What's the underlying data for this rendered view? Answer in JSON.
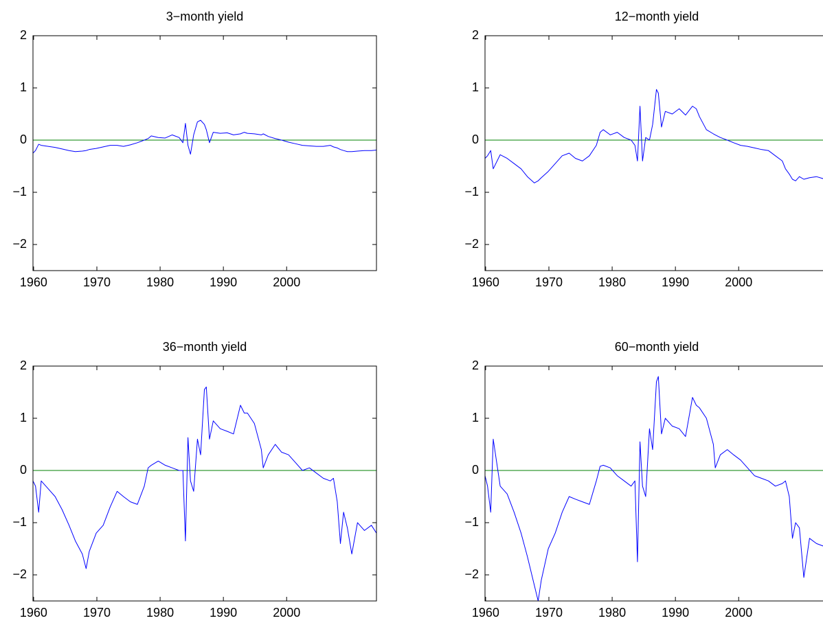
{
  "chart_data": [
    {
      "type": "line",
      "title": "3−month yield",
      "x": [
        1959.9,
        1960.3,
        1960.8,
        1961.2,
        1962.3,
        1963.4,
        1964.5,
        1965.6,
        1966.6,
        1967.7,
        1968.3,
        1968.8,
        1969.9,
        1971.0,
        1972.1,
        1973.2,
        1974.2,
        1975.3,
        1976.4,
        1977.5,
        1978.1,
        1978.6,
        1979.7,
        1980.8,
        1981.9,
        1983.0,
        1983.6,
        1984.0,
        1984.4,
        1984.8,
        1985.3,
        1985.9,
        1986.4,
        1987.0,
        1987.3,
        1987.8,
        1988.4,
        1989.5,
        1990.6,
        1991.6,
        1992.7,
        1993.3,
        1993.8,
        1994.9,
        1996.0,
        1996.3,
        1997.1,
        1998.2,
        1999.2,
        2000.3,
        2001.4,
        2002.5,
        2003.6,
        2004.7,
        2005.8,
        2006.9,
        2007.4,
        2008.0,
        2008.5,
        2009.0,
        2009.6,
        2010.3,
        2011.2,
        2012.3,
        2013.4,
        2014.2
      ],
      "series": [
        {
          "color": "#0000ff",
          "values": [
            -0.25,
            -0.2,
            -0.08,
            -0.1,
            -0.12,
            -0.14,
            -0.17,
            -0.2,
            -0.22,
            -0.21,
            -0.2,
            -0.18,
            -0.16,
            -0.13,
            -0.1,
            -0.1,
            -0.12,
            -0.09,
            -0.05,
            0.0,
            0.03,
            0.08,
            0.05,
            0.04,
            0.1,
            0.05,
            -0.05,
            0.32,
            -0.1,
            -0.27,
            0.1,
            0.35,
            0.38,
            0.3,
            0.2,
            -0.05,
            0.15,
            0.13,
            0.14,
            0.1,
            0.12,
            0.15,
            0.13,
            0.12,
            0.1,
            0.12,
            0.07,
            0.03,
            0.0,
            -0.04,
            -0.07,
            -0.1,
            -0.11,
            -0.12,
            -0.12,
            -0.1,
            -0.13,
            -0.15,
            -0.18,
            -0.2,
            -0.22,
            -0.22,
            -0.21,
            -0.2,
            -0.2,
            -0.19
          ]
        }
      ],
      "reference_line": {
        "y": 0,
        "color": "#008000"
      },
      "xlim": [
        1959.9,
        2014.2
      ],
      "xticks": [
        1960,
        1970,
        1980,
        1990,
        2000
      ],
      "ylim": [
        -2.5,
        2
      ],
      "yticks": [
        {
          "value": -2,
          "label": "−2"
        },
        {
          "value": -1,
          "label": "−1"
        },
        0,
        1,
        2
      ]
    },
    {
      "type": "line",
      "title": "12−month yield",
      "x": [
        1959.9,
        1960.3,
        1960.8,
        1961.2,
        1962.3,
        1963.4,
        1964.5,
        1965.6,
        1966.6,
        1967.7,
        1968.3,
        1968.8,
        1969.9,
        1971.0,
        1972.1,
        1973.2,
        1974.2,
        1975.3,
        1976.4,
        1977.5,
        1978.1,
        1978.6,
        1979.7,
        1980.8,
        1981.9,
        1983.0,
        1983.6,
        1984.0,
        1984.4,
        1984.8,
        1985.3,
        1985.9,
        1986.4,
        1987.0,
        1987.3,
        1987.8,
        1988.4,
        1989.5,
        1990.6,
        1991.6,
        1992.7,
        1993.3,
        1993.8,
        1994.9,
        1996.0,
        1996.3,
        1997.1,
        1998.2,
        1999.2,
        2000.3,
        2001.4,
        2002.5,
        2003.6,
        2004.7,
        2005.8,
        2006.9,
        2007.4,
        2008.0,
        2008.5,
        2009.0,
        2009.6,
        2010.3,
        2011.2,
        2012.3,
        2013.4,
        2014.2
      ],
      "series": [
        {
          "color": "#0000ff",
          "values": [
            -0.35,
            -0.3,
            -0.2,
            -0.55,
            -0.28,
            -0.35,
            -0.45,
            -0.55,
            -0.7,
            -0.82,
            -0.78,
            -0.72,
            -0.6,
            -0.45,
            -0.3,
            -0.25,
            -0.35,
            -0.4,
            -0.3,
            -0.1,
            0.15,
            0.2,
            0.1,
            0.15,
            0.05,
            0.0,
            -0.1,
            -0.4,
            0.65,
            -0.4,
            0.05,
            0.0,
            0.3,
            0.97,
            0.9,
            0.25,
            0.55,
            0.5,
            0.6,
            0.48,
            0.65,
            0.6,
            0.45,
            0.2,
            0.12,
            0.1,
            0.05,
            0.0,
            -0.05,
            -0.1,
            -0.12,
            -0.15,
            -0.18,
            -0.2,
            -0.3,
            -0.4,
            -0.55,
            -0.65,
            -0.75,
            -0.78,
            -0.7,
            -0.75,
            -0.72,
            -0.7,
            -0.74,
            -0.72
          ]
        }
      ],
      "reference_line": {
        "y": 0,
        "color": "#008000"
      },
      "xlim": [
        1959.9,
        2014.2
      ],
      "xticks": [
        1960,
        1970,
        1980,
        1990,
        2000
      ],
      "ylim": [
        -2.5,
        2
      ],
      "yticks": [
        {
          "value": -2,
          "label": "−2"
        },
        {
          "value": -1,
          "label": "−1"
        },
        0,
        1,
        2
      ]
    },
    {
      "type": "line",
      "title": "36−month yield",
      "x": [
        1959.9,
        1960.3,
        1960.8,
        1961.2,
        1962.3,
        1963.4,
        1964.5,
        1965.6,
        1966.6,
        1967.7,
        1968.3,
        1968.8,
        1969.9,
        1971.0,
        1972.1,
        1973.2,
        1974.2,
        1975.3,
        1976.4,
        1977.5,
        1978.1,
        1978.6,
        1979.7,
        1980.8,
        1981.9,
        1983.0,
        1983.6,
        1984.0,
        1984.4,
        1984.8,
        1985.3,
        1985.9,
        1986.4,
        1987.0,
        1987.3,
        1987.8,
        1988.4,
        1989.5,
        1990.6,
        1991.6,
        1992.7,
        1993.3,
        1993.8,
        1994.9,
        1996.0,
        1996.3,
        1997.1,
        1998.2,
        1999.2,
        2000.3,
        2001.4,
        2002.5,
        2003.6,
        2004.7,
        2005.8,
        2006.9,
        2007.4,
        2008.0,
        2008.5,
        2009.0,
        2009.6,
        2010.3,
        2011.2,
        2012.3,
        2013.4,
        2014.2
      ],
      "series": [
        {
          "color": "#0000ff",
          "values": [
            -0.2,
            -0.3,
            -0.8,
            -0.2,
            -0.35,
            -0.5,
            -0.75,
            -1.05,
            -1.35,
            -1.6,
            -1.88,
            -1.55,
            -1.2,
            -1.05,
            -0.7,
            -0.4,
            -0.5,
            -0.6,
            -0.65,
            -0.3,
            0.05,
            0.1,
            0.18,
            0.1,
            0.05,
            0.0,
            0.0,
            -1.35,
            0.63,
            -0.2,
            -0.4,
            0.6,
            0.3,
            1.55,
            1.6,
            0.6,
            0.95,
            0.8,
            0.75,
            0.7,
            1.25,
            1.1,
            1.1,
            0.9,
            0.4,
            0.05,
            0.3,
            0.5,
            0.35,
            0.3,
            0.15,
            0.0,
            0.05,
            -0.05,
            -0.15,
            -0.2,
            -0.15,
            -0.6,
            -1.4,
            -0.8,
            -1.1,
            -1.6,
            -1.0,
            -1.15,
            -1.05,
            -1.2
          ]
        }
      ],
      "reference_line": {
        "y": 0,
        "color": "#008000"
      },
      "xlim": [
        1959.9,
        2014.2
      ],
      "xticks": [
        1960,
        1970,
        1980,
        1990,
        2000
      ],
      "ylim": [
        -2.5,
        2
      ],
      "yticks": [
        {
          "value": -2,
          "label": "−2"
        },
        {
          "value": -1,
          "label": "−1"
        },
        0,
        1,
        2
      ]
    },
    {
      "type": "line",
      "title": "60−month yield",
      "x": [
        1959.9,
        1960.3,
        1960.8,
        1961.2,
        1962.3,
        1963.4,
        1964.5,
        1965.6,
        1966.6,
        1967.7,
        1968.3,
        1968.8,
        1969.9,
        1971.0,
        1972.1,
        1973.2,
        1974.2,
        1975.3,
        1976.4,
        1977.5,
        1978.1,
        1978.6,
        1979.7,
        1980.8,
        1981.9,
        1983.0,
        1983.6,
        1984.0,
        1984.4,
        1984.8,
        1985.3,
        1985.9,
        1986.4,
        1987.0,
        1987.3,
        1987.8,
        1988.4,
        1989.5,
        1990.6,
        1991.6,
        1992.7,
        1993.3,
        1993.8,
        1994.9,
        1996.0,
        1996.3,
        1997.1,
        1998.2,
        1999.2,
        2000.3,
        2001.4,
        2002.5,
        2003.6,
        2004.7,
        2005.8,
        2006.9,
        2007.4,
        2008.0,
        2008.5,
        2009.0,
        2009.6,
        2010.3,
        2011.2,
        2012.3,
        2013.4,
        2014.2
      ],
      "series": [
        {
          "color": "#0000ff",
          "values": [
            -0.1,
            -0.3,
            -0.8,
            0.6,
            -0.3,
            -0.45,
            -0.8,
            -1.2,
            -1.65,
            -2.2,
            -2.5,
            -2.1,
            -1.5,
            -1.2,
            -0.8,
            -0.5,
            -0.55,
            -0.6,
            -0.65,
            -0.2,
            0.08,
            0.1,
            0.05,
            -0.1,
            -0.2,
            -0.3,
            -0.2,
            -1.75,
            0.55,
            -0.3,
            -0.5,
            0.8,
            0.4,
            1.7,
            1.8,
            0.7,
            1.0,
            0.85,
            0.8,
            0.65,
            1.4,
            1.25,
            1.2,
            1.0,
            0.5,
            0.05,
            0.3,
            0.4,
            0.3,
            0.2,
            0.05,
            -0.1,
            -0.15,
            -0.2,
            -0.3,
            -0.25,
            -0.2,
            -0.5,
            -1.3,
            -1.0,
            -1.1,
            -2.05,
            -1.3,
            -1.4,
            -1.45,
            -1.4
          ]
        }
      ],
      "reference_line": {
        "y": 0,
        "color": "#008000"
      },
      "xlim": [
        1959.9,
        2014.2
      ],
      "xticks": [
        1960,
        1970,
        1980,
        1990,
        2000
      ],
      "ylim": [
        -2.5,
        2
      ],
      "yticks": [
        {
          "value": -2,
          "label": "−2"
        },
        {
          "value": -1,
          "label": "−1"
        },
        0,
        1,
        2
      ]
    }
  ]
}
